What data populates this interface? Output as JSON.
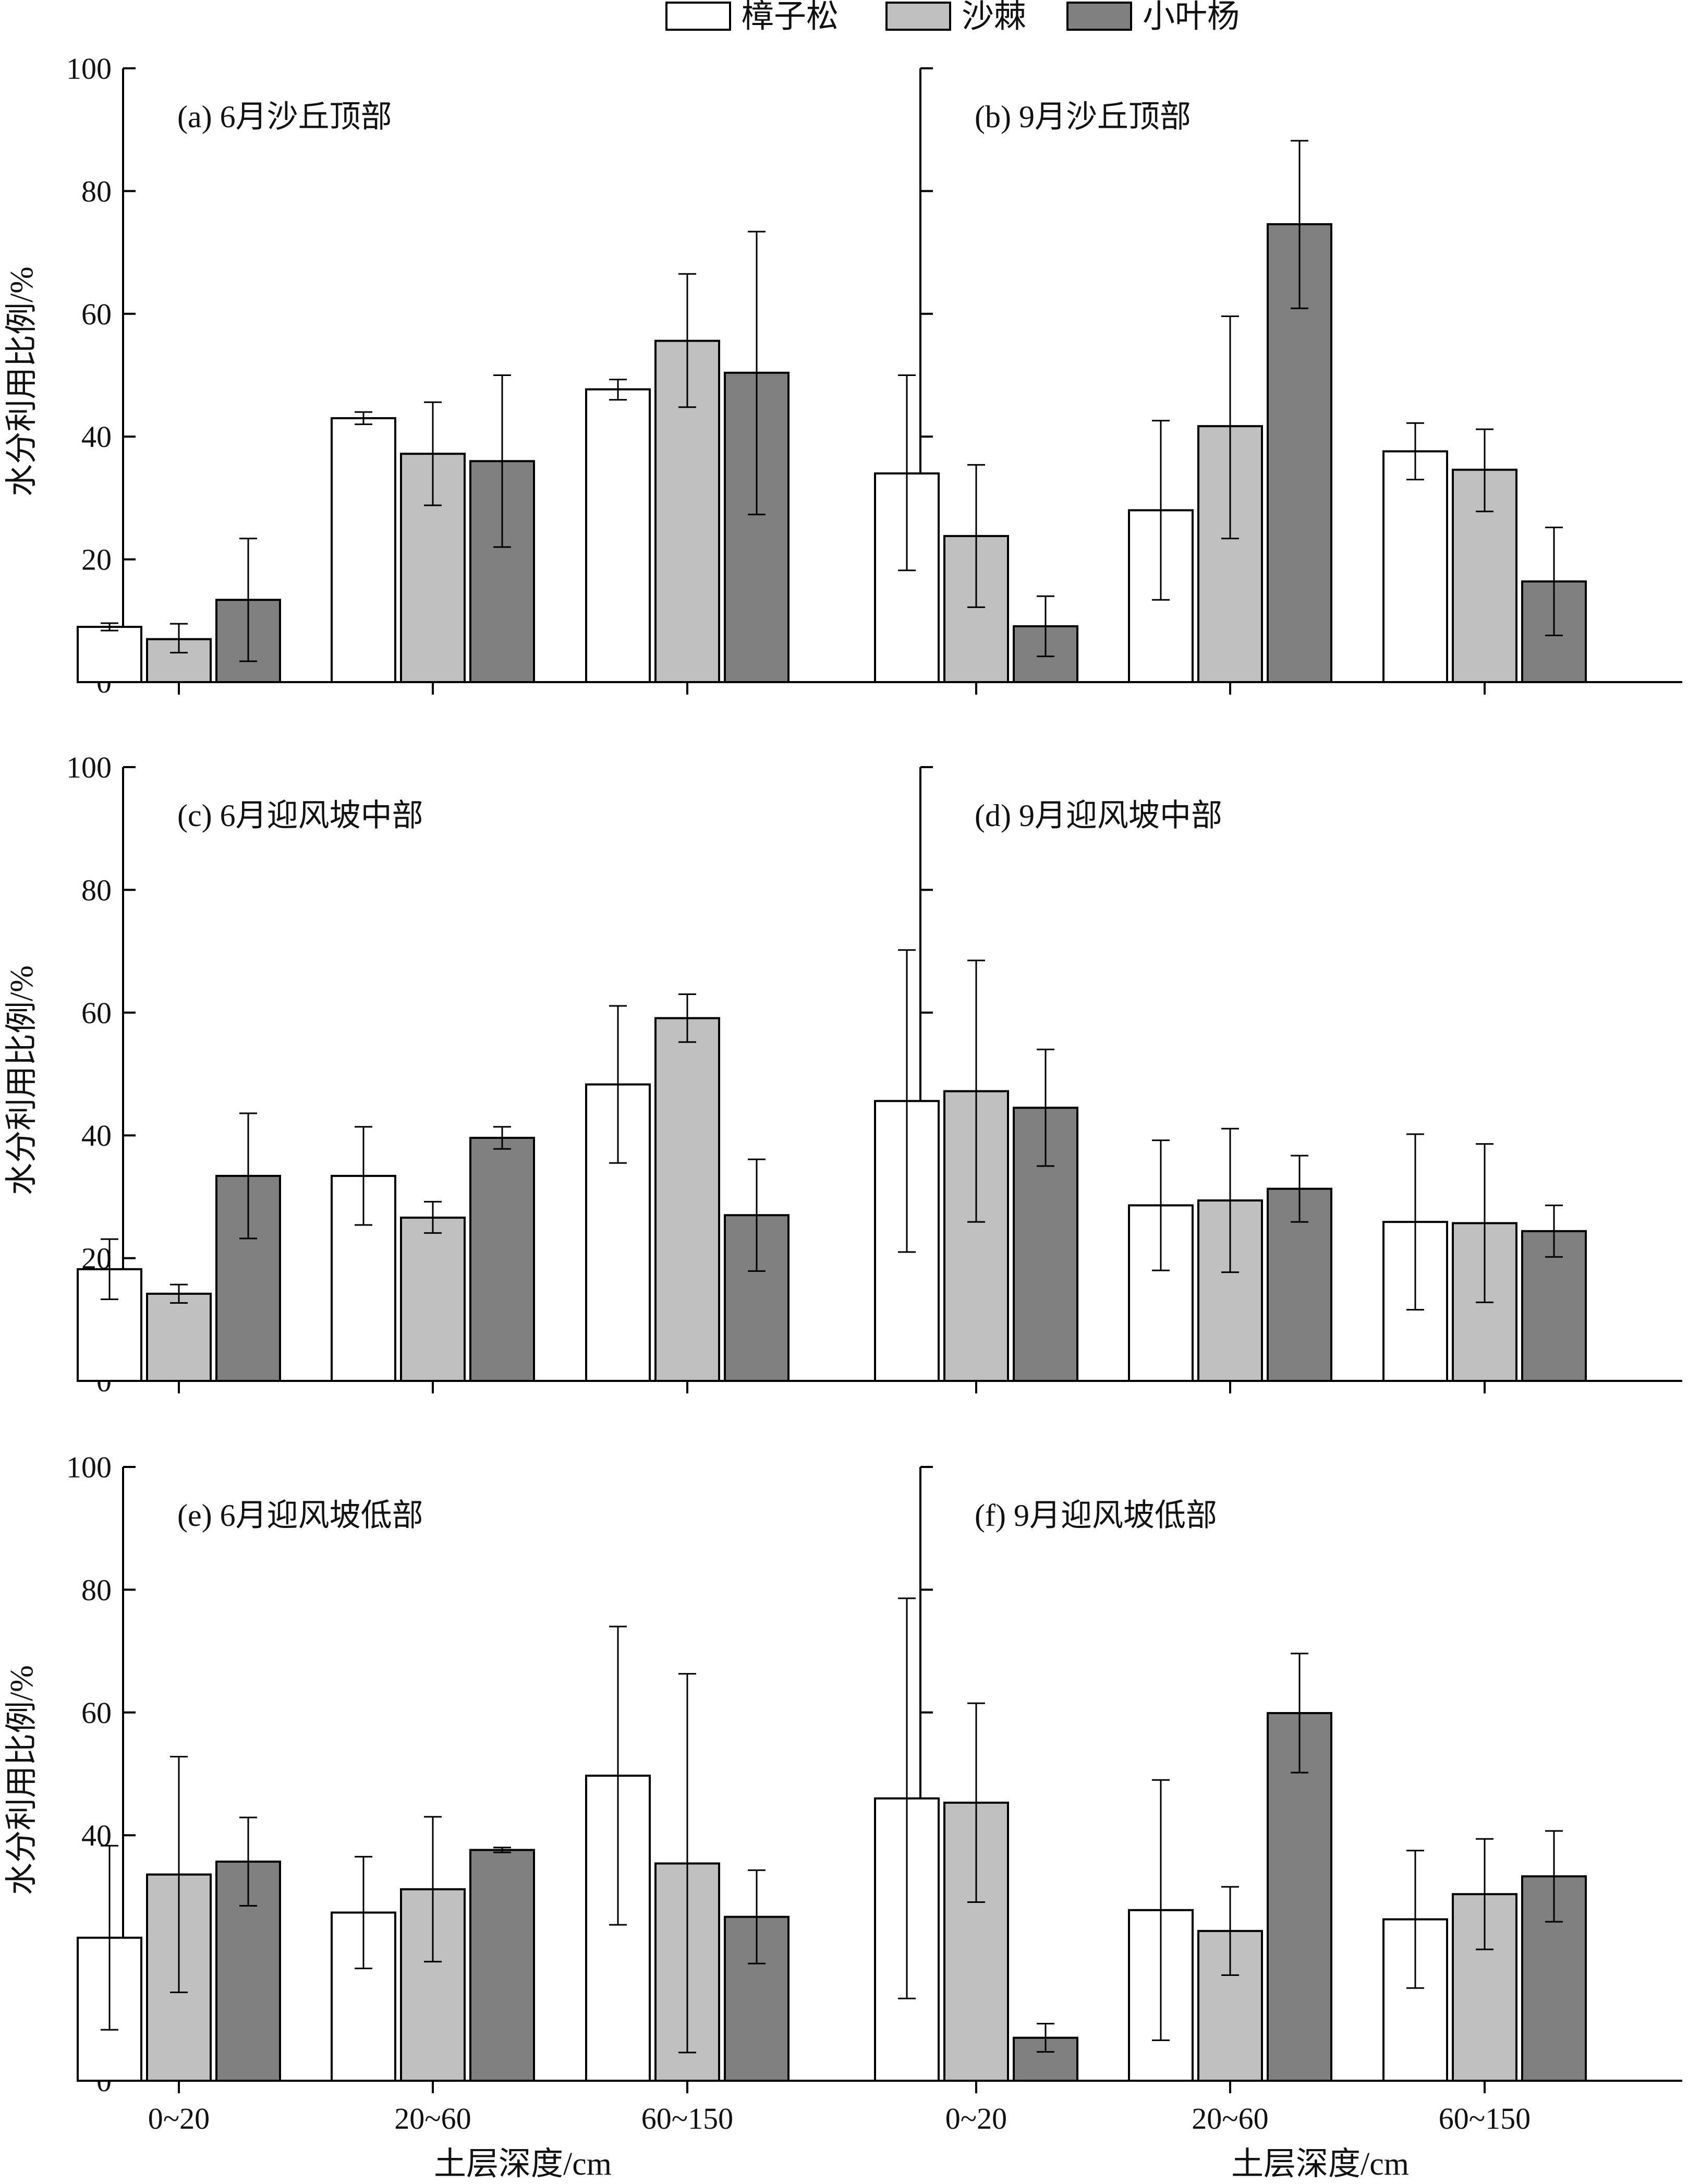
{
  "legend": [
    {
      "name": "樟子松",
      "color": "#ffffff"
    },
    {
      "name": "沙棘",
      "color": "#c0c0c0"
    },
    {
      "name": "小叶杨",
      "color": "#808080"
    }
  ],
  "y_axis_label": "水分利用比例/%",
  "x_axis_label": "土层深度/cm",
  "chart_data": [
    {
      "type": "bar",
      "title": "(a) 6月沙丘顶部",
      "categories": [
        "0~20",
        "20~60",
        "60~150"
      ],
      "ylabel": "水分利用比例/%",
      "xlabel": "",
      "ylim": [
        0,
        100
      ],
      "yticks": [
        0,
        20,
        40,
        60,
        80,
        100
      ],
      "series": [
        {
          "name": "樟子松",
          "values": [
            9.0,
            43.0,
            47.7
          ],
          "err_low": [
            8.4,
            42.0,
            46.0
          ],
          "err_high": [
            9.6,
            44.0,
            49.3
          ]
        },
        {
          "name": "沙棘",
          "values": [
            7.0,
            37.2,
            55.6
          ],
          "err_low": [
            4.8,
            28.8,
            44.8
          ],
          "err_high": [
            9.5,
            45.6,
            66.5
          ]
        },
        {
          "name": "小叶杨",
          "values": [
            13.4,
            36.0,
            50.4
          ],
          "err_low": [
            3.4,
            22.0,
            27.3
          ],
          "err_high": [
            23.4,
            50.0,
            73.4
          ]
        }
      ]
    },
    {
      "type": "bar",
      "title": "(b) 9月沙丘顶部",
      "categories": [
        "0~20",
        "20~60",
        "60~150"
      ],
      "ylabel": "",
      "xlabel": "",
      "ylim": [
        0,
        100
      ],
      "yticks": [
        0,
        20,
        40,
        60,
        80,
        100
      ],
      "series": [
        {
          "name": "樟子松",
          "values": [
            34.0,
            28.0,
            37.6
          ],
          "err_low": [
            18.2,
            13.4,
            33.0
          ],
          "err_high": [
            50.0,
            42.6,
            42.2
          ]
        },
        {
          "name": "沙棘",
          "values": [
            23.8,
            41.7,
            34.6
          ],
          "err_low": [
            12.2,
            23.4,
            27.8
          ],
          "err_high": [
            35.4,
            59.6,
            41.2
          ]
        },
        {
          "name": "小叶杨",
          "values": [
            9.1,
            74.6,
            16.4
          ],
          "err_low": [
            4.2,
            60.9,
            7.6
          ],
          "err_high": [
            14.0,
            88.2,
            25.2
          ]
        }
      ]
    },
    {
      "type": "bar",
      "title": "(c) 6月迎风坡中部",
      "categories": [
        "0~20",
        "20~60",
        "60~150"
      ],
      "ylabel": "水分利用比例/%",
      "xlabel": "",
      "ylim": [
        0,
        100
      ],
      "yticks": [
        0,
        20,
        40,
        60,
        80,
        100
      ],
      "series": [
        {
          "name": "樟子松",
          "values": [
            18.2,
            33.4,
            48.3
          ],
          "err_low": [
            13.3,
            25.4,
            35.5
          ],
          "err_high": [
            23.1,
            41.4,
            61.1
          ]
        },
        {
          "name": "沙棘",
          "values": [
            14.2,
            26.6,
            59.1
          ],
          "err_low": [
            12.7,
            24.1,
            55.2
          ],
          "err_high": [
            15.7,
            29.2,
            63.0
          ]
        },
        {
          "name": "小叶杨",
          "values": [
            33.4,
            39.6,
            27.0
          ],
          "err_low": [
            23.2,
            37.8,
            17.9
          ],
          "err_high": [
            43.6,
            41.4,
            36.1
          ]
        }
      ]
    },
    {
      "type": "bar",
      "title": "(d) 9月迎风坡中部",
      "categories": [
        "0~20",
        "20~60",
        "60~150"
      ],
      "ylabel": "",
      "xlabel": "",
      "ylim": [
        0,
        100
      ],
      "yticks": [
        0,
        20,
        40,
        60,
        80,
        100
      ],
      "series": [
        {
          "name": "樟子松",
          "values": [
            45.6,
            28.6,
            25.9
          ],
          "err_low": [
            21.0,
            18.0,
            11.6
          ],
          "err_high": [
            70.2,
            39.2,
            40.2
          ]
        },
        {
          "name": "沙棘",
          "values": [
            47.2,
            29.4,
            25.7
          ],
          "err_low": [
            25.9,
            17.7,
            12.8
          ],
          "err_high": [
            68.5,
            41.1,
            38.6
          ]
        },
        {
          "name": "小叶杨",
          "values": [
            44.5,
            31.3,
            24.4
          ],
          "err_low": [
            35.0,
            25.9,
            20.2
          ],
          "err_high": [
            54.0,
            36.7,
            28.6
          ]
        }
      ]
    },
    {
      "type": "bar",
      "title": "(e) 6月迎风坡低部",
      "categories": [
        "0~20",
        "20~60",
        "60~150"
      ],
      "ylabel": "水分利用比例/%",
      "xlabel": "土层深度/cm",
      "ylim": [
        0,
        100
      ],
      "yticks": [
        0,
        20,
        40,
        60,
        80,
        100
      ],
      "series": [
        {
          "name": "樟子松",
          "values": [
            23.3,
            27.4,
            49.7
          ],
          "err_low": [
            8.3,
            18.3,
            25.4
          ],
          "err_high": [
            38.3,
            36.5,
            74.0
          ]
        },
        {
          "name": "沙棘",
          "values": [
            33.6,
            31.2,
            35.4
          ],
          "err_low": [
            14.4,
            19.4,
            4.6
          ],
          "err_high": [
            52.8,
            43.0,
            66.3
          ]
        },
        {
          "name": "小叶杨",
          "values": [
            35.7,
            37.6,
            26.7
          ],
          "err_low": [
            28.5,
            37.2,
            19.1
          ],
          "err_high": [
            42.9,
            38.0,
            34.3
          ]
        }
      ]
    },
    {
      "type": "bar",
      "title": "(f) 9月迎风坡低部",
      "categories": [
        "0~20",
        "20~60",
        "60~150"
      ],
      "ylabel": "",
      "xlabel": "土层深度/cm",
      "ylim": [
        0,
        100
      ],
      "yticks": [
        0,
        20,
        40,
        60,
        80,
        100
      ],
      "series": [
        {
          "name": "樟子松",
          "values": [
            46.0,
            27.8,
            26.3
          ],
          "err_low": [
            13.4,
            6.6,
            15.1
          ],
          "err_high": [
            78.6,
            49.0,
            37.5
          ]
        },
        {
          "name": "沙棘",
          "values": [
            45.3,
            24.4,
            30.4
          ],
          "err_low": [
            29.1,
            17.2,
            21.4
          ],
          "err_high": [
            61.5,
            31.6,
            39.4
          ]
        },
        {
          "name": "小叶杨",
          "values": [
            7.0,
            59.9,
            33.3
          ],
          "err_low": [
            4.7,
            50.2,
            25.9
          ],
          "err_high": [
            9.3,
            69.6,
            40.7
          ]
        }
      ]
    }
  ]
}
